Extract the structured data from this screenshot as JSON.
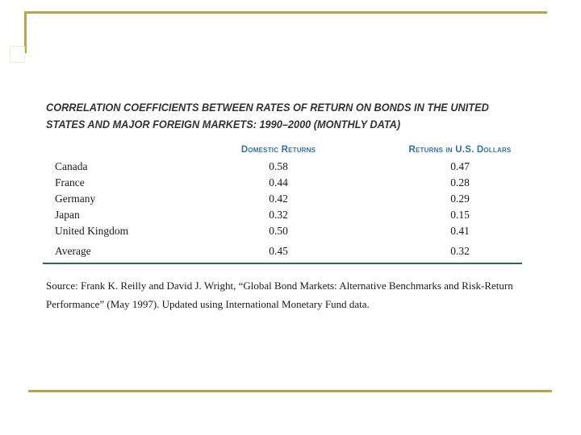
{
  "slide": {
    "background": "#FFFFFF",
    "accent_gold": "#B5A647",
    "rule_teal": "#2E6364",
    "header_blue": "#3273A1"
  },
  "title": {
    "lines": [
      "CORRELATION COEFFICIENTS BETWEEN RATES OF RETURN ON BONDS IN THE UNITED",
      "STATES AND MAJOR FOREIGN MARKETS: 1990–2000 (MONTHLY DATA)"
    ]
  },
  "table": {
    "headers": {
      "market": "",
      "domestic": "Domestic Returns",
      "usd": "Returns in U.S. Dollars"
    },
    "rows": [
      {
        "market": "Canada",
        "domestic": "0.58",
        "usd": "0.47"
      },
      {
        "market": "France",
        "domestic": "0.44",
        "usd": "0.28"
      },
      {
        "market": "Germany",
        "domestic": "0.42",
        "usd": "0.29"
      },
      {
        "market": "Japan",
        "domestic": "0.32",
        "usd": "0.15"
      },
      {
        "market": "United Kingdom",
        "domestic": "0.50",
        "usd": "0.41"
      },
      {
        "market": "Average",
        "domestic": "0.45",
        "usd": "0.32"
      }
    ]
  },
  "source": {
    "lines": [
      "Source: Frank K. Reilly and David J. Wright, “Global Bond Markets: Alternative Benchmarks and Risk-Return",
      "Performance” (May 1997). Updated using International Monetary Fund data."
    ]
  }
}
